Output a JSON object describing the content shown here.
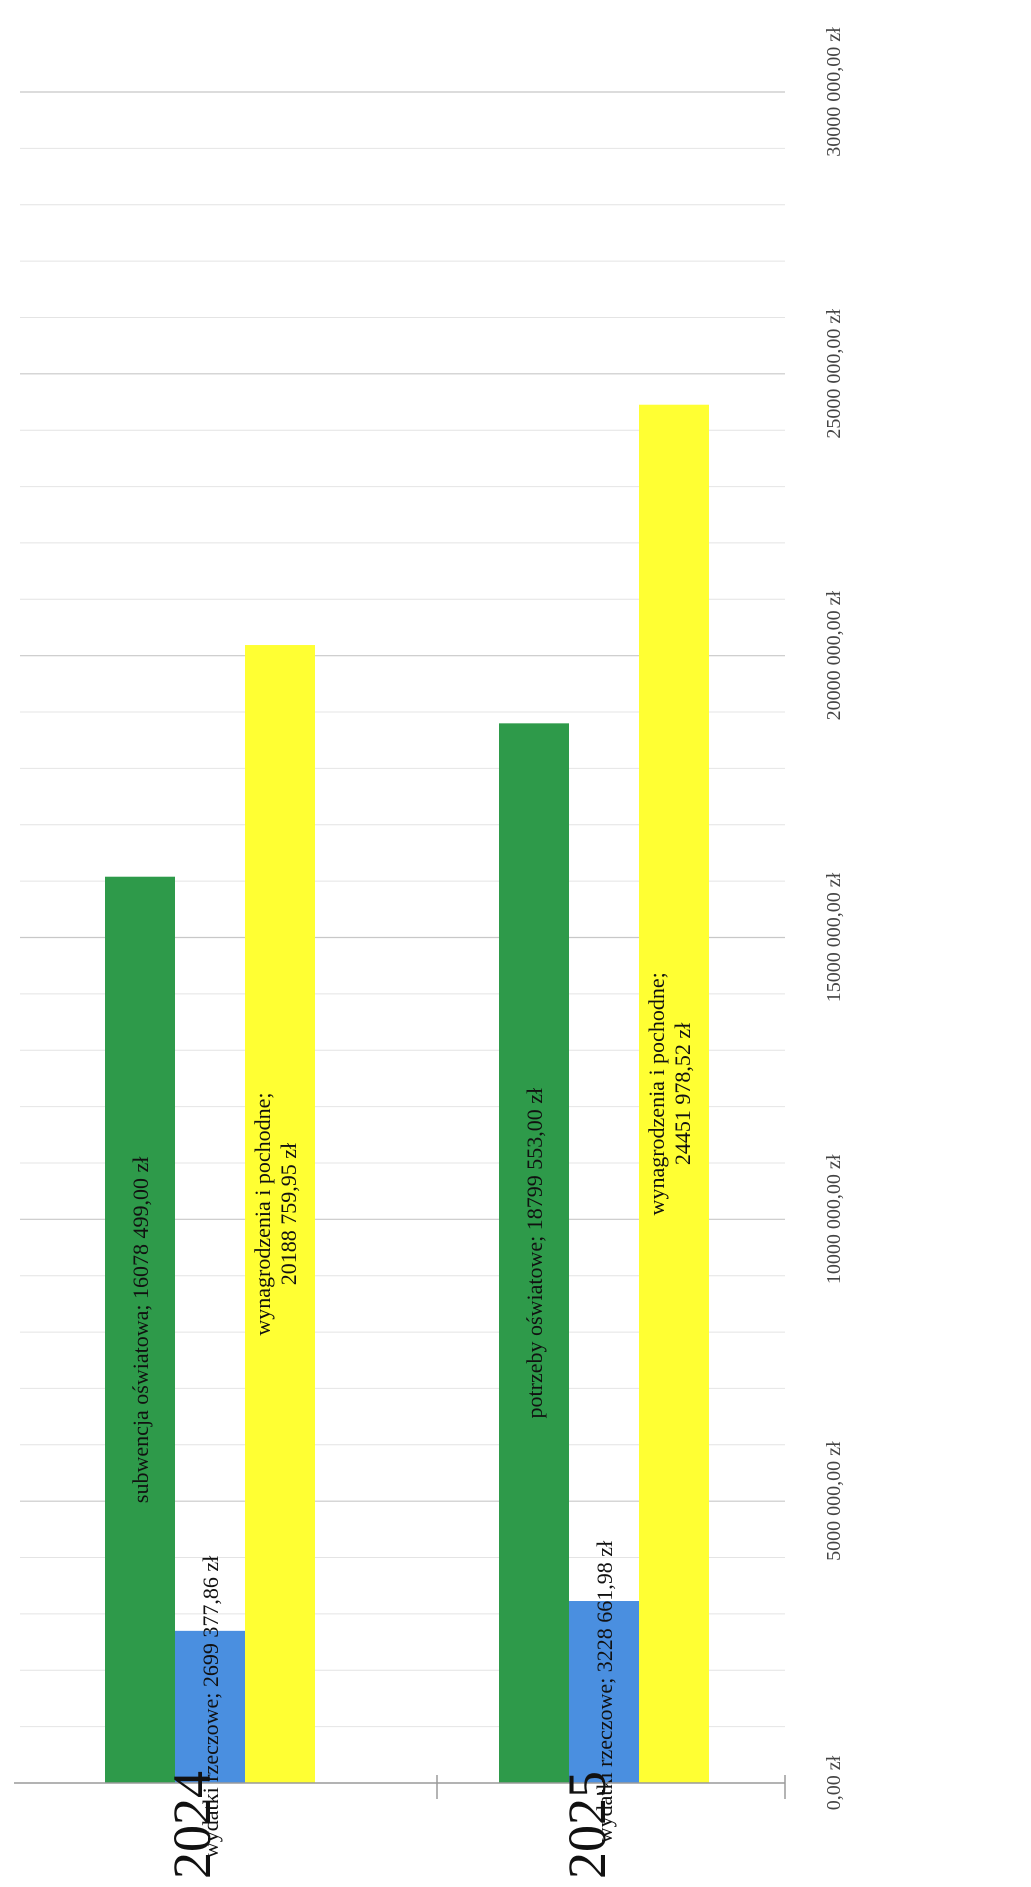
{
  "chart_data": {
    "type": "bar",
    "orientation": "horizontal",
    "page_rotation_deg": -90,
    "categories": [
      "2024",
      "2025"
    ],
    "value_axis": {
      "min": 0,
      "max": 30000000,
      "major_step": 5000000,
      "minor_step": 1000000,
      "tick_labels": [
        "0,00 zł",
        "5000 000,00 zł",
        "10000 000,00 zł",
        "15000 000,00 zł",
        "20000 000,00 zł",
        "25000 000,00 zł",
        "30000 000,00 zł"
      ]
    },
    "grid": true,
    "legend": "none",
    "groups": [
      {
        "category": "2024",
        "bars": [
          {
            "label": "subwencja oświatowa",
            "value": 16078499.0,
            "data_label": "subwencja oświatowa; 16078 499,00 zł",
            "color": "#2e9a4a"
          },
          {
            "label": "wydatki rzeczowe",
            "value": 2699377.86,
            "data_label": "wydatki rzeczowe; 2699 377,86 zł",
            "color": "#4a8fe0"
          },
          {
            "label": "wynagrodzenia i pochodne",
            "value": 20188759.95,
            "data_label_lines": [
              "wynagrodzenia i pochodne;",
              "20188 759,95 zł"
            ],
            "color": "#ffff33"
          }
        ]
      },
      {
        "category": "2025",
        "bars": [
          {
            "label": "potrzeby oświatowe",
            "value": 18799553.0,
            "data_label": "potrzeby oświatowe; 18799 553,00 zł",
            "color": "#2e9a4a"
          },
          {
            "label": "wydatki rzeczowe",
            "value": 3228661.98,
            "data_label": "wydatki rzeczowe; 3228 661,98 zł",
            "color": "#4a8fe0"
          },
          {
            "label": "wynagrodzenia i pochodne",
            "value": 24451978.52,
            "data_label_lines": [
              "wynagrodzenia i pochodne;",
              "24451 978,52 zł"
            ],
            "color": "#ffff33"
          }
        ]
      }
    ]
  }
}
